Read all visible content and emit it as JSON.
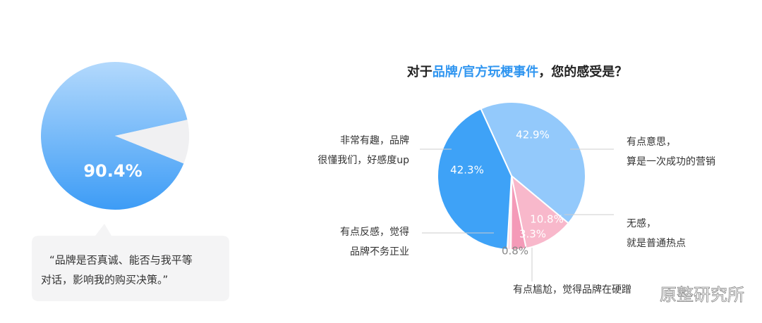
{
  "left_chart": {
    "type": "pie",
    "values": [
      90.4,
      9.6
    ],
    "value_labels": [
      "90.4%",
      null
    ],
    "colors": [
      "#5aaaf7",
      "#f0f0f2"
    ]
  },
  "quote": [
    "“品牌是否真诚、能否与我平等",
    "对话，影响我的购买决策。”"
  ],
  "chart_data": {
    "type": "pie",
    "title": [
      "对于",
      "品牌/官方玩梗事件",
      "，您的感受是？"
    ],
    "categories": [
      [
        "有点意思，",
        "算是一次成功的营销"
      ],
      [
        "无感，",
        "就是普通热点"
      ],
      [
        "有点尴尬，觉得品牌在硬蹭"
      ],
      [
        "有点反感，觉得",
        "品牌不务正业"
      ],
      [
        "非常有趣，品牌",
        "很懂我们，好感度up"
      ]
    ],
    "values": [
      42.9,
      10.8,
      3.3,
      0.8,
      42.3
    ],
    "value_labels": [
      "42.9%",
      "10.8%",
      "3.3%",
      "0.8%",
      "42.3%"
    ],
    "colors": [
      "#93c9fb",
      "#f8b8cb",
      "#f49ab8",
      "#fce4ec",
      "#3ea2f7"
    ]
  },
  "watermark": "原整研究所"
}
